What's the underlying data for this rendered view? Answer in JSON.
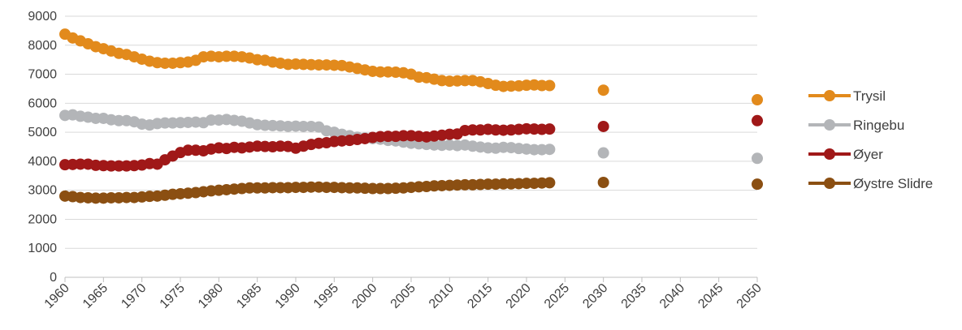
{
  "chart_data": {
    "type": "line",
    "title": "",
    "xlabel": "",
    "ylabel": "",
    "xlim": [
      1960,
      2050
    ],
    "ylim": [
      0,
      9000
    ],
    "x_ticks": [
      1960,
      1965,
      1970,
      1975,
      1980,
      1985,
      1990,
      1995,
      2000,
      2005,
      2010,
      2015,
      2020,
      2025,
      2030,
      2035,
      2040,
      2045,
      2050
    ],
    "y_ticks": [
      0,
      1000,
      2000,
      3000,
      4000,
      5000,
      6000,
      7000,
      8000,
      9000
    ],
    "grid": "horizontal",
    "legend_position": "right",
    "x": [
      1960,
      1961,
      1962,
      1963,
      1964,
      1965,
      1966,
      1967,
      1968,
      1969,
      1970,
      1971,
      1972,
      1973,
      1974,
      1975,
      1976,
      1977,
      1978,
      1979,
      1980,
      1981,
      1982,
      1983,
      1984,
      1985,
      1986,
      1987,
      1988,
      1989,
      1990,
      1991,
      1992,
      1993,
      1994,
      1995,
      1996,
      1997,
      1998,
      1999,
      2000,
      2001,
      2002,
      2003,
      2004,
      2005,
      2006,
      2007,
      2008,
      2009,
      2010,
      2011,
      2012,
      2013,
      2014,
      2015,
      2016,
      2017,
      2018,
      2019,
      2020,
      2021,
      2022,
      2023
    ],
    "projection_x": [
      2030,
      2050
    ],
    "series": [
      {
        "name": "Trysil",
        "color": "#E28A1C",
        "values": [
          8380,
          8250,
          8150,
          8050,
          7950,
          7880,
          7800,
          7720,
          7680,
          7600,
          7520,
          7450,
          7400,
          7380,
          7380,
          7400,
          7420,
          7480,
          7600,
          7620,
          7600,
          7620,
          7620,
          7600,
          7560,
          7500,
          7480,
          7420,
          7380,
          7340,
          7350,
          7340,
          7330,
          7320,
          7320,
          7310,
          7300,
          7250,
          7200,
          7150,
          7100,
          7080,
          7080,
          7070,
          7050,
          7000,
          6900,
          6880,
          6830,
          6780,
          6760,
          6770,
          6780,
          6780,
          6740,
          6680,
          6620,
          6580,
          6590,
          6600,
          6620,
          6630,
          6610,
          6610
        ],
        "projection": [
          6450,
          6120
        ]
      },
      {
        "name": "Ringebu",
        "color": "#B3B5B8",
        "values": [
          5580,
          5600,
          5550,
          5520,
          5480,
          5480,
          5430,
          5400,
          5400,
          5360,
          5280,
          5250,
          5300,
          5320,
          5320,
          5330,
          5340,
          5350,
          5330,
          5420,
          5420,
          5440,
          5410,
          5380,
          5320,
          5260,
          5240,
          5230,
          5220,
          5200,
          5210,
          5200,
          5200,
          5180,
          5050,
          5000,
          4930,
          4880,
          4830,
          4800,
          4780,
          4760,
          4720,
          4700,
          4660,
          4620,
          4600,
          4580,
          4560,
          4550,
          4560,
          4540,
          4560,
          4520,
          4490,
          4460,
          4450,
          4480,
          4470,
          4440,
          4420,
          4400,
          4400,
          4410
        ],
        "projection": [
          4290,
          4100
        ]
      },
      {
        "name": "Øyer",
        "color": "#A01818",
        "values": [
          3880,
          3890,
          3900,
          3900,
          3860,
          3850,
          3840,
          3840,
          3840,
          3850,
          3870,
          3920,
          3900,
          4050,
          4180,
          4300,
          4380,
          4380,
          4360,
          4420,
          4460,
          4440,
          4480,
          4460,
          4490,
          4520,
          4510,
          4500,
          4520,
          4510,
          4450,
          4520,
          4580,
          4620,
          4640,
          4680,
          4700,
          4720,
          4750,
          4780,
          4820,
          4850,
          4860,
          4860,
          4880,
          4880,
          4860,
          4840,
          4870,
          4900,
          4930,
          4940,
          5060,
          5080,
          5080,
          5100,
          5080,
          5070,
          5080,
          5100,
          5120,
          5110,
          5100,
          5110
        ],
        "projection": [
          5200,
          5400
        ]
      },
      {
        "name": "Øystre Slidre",
        "color": "#8B4F12",
        "values": [
          2800,
          2780,
          2750,
          2740,
          2730,
          2730,
          2740,
          2740,
          2750,
          2750,
          2770,
          2790,
          2800,
          2830,
          2860,
          2880,
          2900,
          2920,
          2950,
          2980,
          3000,
          3020,
          3040,
          3060,
          3080,
          3080,
          3080,
          3090,
          3090,
          3090,
          3100,
          3100,
          3110,
          3110,
          3100,
          3100,
          3090,
          3080,
          3080,
          3070,
          3060,
          3060,
          3060,
          3070,
          3080,
          3100,
          3120,
          3130,
          3150,
          3160,
          3170,
          3180,
          3190,
          3190,
          3200,
          3210,
          3210,
          3220,
          3220,
          3230,
          3240,
          3240,
          3250,
          3260
        ],
        "projection": [
          3270,
          3210
        ]
      }
    ]
  }
}
